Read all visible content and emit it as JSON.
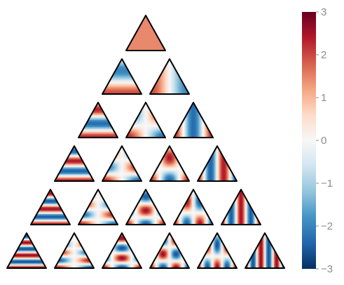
{
  "chart_data": {
    "type": "heatmap",
    "title": "",
    "xlabel": "",
    "ylabel": "",
    "colormap": "RdBu_r",
    "color_range": [
      -3,
      3
    ],
    "colorbar": {
      "ticks": [
        3,
        2,
        1,
        0,
        -1,
        -2,
        -3
      ],
      "tick_labels": [
        "3",
        "2",
        "1",
        "0",
        "−1",
        "−2",
        "−3"
      ]
    },
    "grid": false,
    "rows": 6,
    "panels_per_row": [
      1,
      2,
      3,
      4,
      5,
      6
    ],
    "panels": [
      {
        "row": 0,
        "col": 0,
        "fy": 0,
        "fx": 0,
        "fc": 0,
        "amp": 1.45
      },
      {
        "row": 1,
        "col": 0,
        "fy": 1,
        "fx": 0,
        "fc": 0,
        "amp": 2.0
      },
      {
        "row": 1,
        "col": 1,
        "fy": 0,
        "fx": 1,
        "fc": 0,
        "amp": 2.0
      },
      {
        "row": 2,
        "col": 0,
        "fy": 2,
        "fx": 0,
        "fc": 0,
        "amp": 2.3
      },
      {
        "row": 2,
        "col": 1,
        "fy": 1,
        "fx": 1,
        "fc": 0,
        "amp": 2.3
      },
      {
        "row": 2,
        "col": 2,
        "fy": 0,
        "fx": 2,
        "fc": 0,
        "amp": 2.3
      },
      {
        "row": 3,
        "col": 0,
        "fy": 3,
        "fx": 0,
        "fc": 0,
        "amp": 2.4
      },
      {
        "row": 3,
        "col": 1,
        "fy": 2,
        "fx": 1,
        "fc": 0,
        "amp": 2.4
      },
      {
        "row": 3,
        "col": 2,
        "fy": 1,
        "fx": 2,
        "fc": 0,
        "amp": 2.4
      },
      {
        "row": 3,
        "col": 3,
        "fy": 0,
        "fx": 3,
        "fc": 0,
        "amp": 2.4
      },
      {
        "row": 4,
        "col": 0,
        "fy": 4,
        "fx": 0,
        "fc": 0,
        "amp": 2.5
      },
      {
        "row": 4,
        "col": 1,
        "fy": 3,
        "fx": 1,
        "fc": 0,
        "amp": 2.5
      },
      {
        "row": 4,
        "col": 2,
        "fy": 2,
        "fx": 2,
        "fc": 0,
        "amp": 2.5
      },
      {
        "row": 4,
        "col": 3,
        "fy": 1,
        "fx": 3,
        "fc": 0,
        "amp": 2.5
      },
      {
        "row": 4,
        "col": 4,
        "fy": 0,
        "fx": 4,
        "fc": 0,
        "amp": 2.5
      },
      {
        "row": 5,
        "col": 0,
        "fy": 5,
        "fx": 0,
        "fc": 0,
        "amp": 2.6
      },
      {
        "row": 5,
        "col": 1,
        "fy": 4,
        "fx": 1,
        "fc": 0,
        "amp": 2.6
      },
      {
        "row": 5,
        "col": 2,
        "fy": 3,
        "fx": 2,
        "fc": 0,
        "amp": 2.6
      },
      {
        "row": 5,
        "col": 3,
        "fy": 2,
        "fx": 3,
        "fc": 0,
        "amp": 2.6
      },
      {
        "row": 5,
        "col": 4,
        "fy": 1,
        "fx": 4,
        "fc": 0,
        "amp": 2.6
      },
      {
        "row": 5,
        "col": 5,
        "fy": 0,
        "fx": 5,
        "fc": 0,
        "amp": 2.6
      }
    ]
  },
  "colors": {
    "outline": "#000000",
    "tick_text": "#8c8c8c",
    "colormap_stops": [
      "#053061",
      "#2166ac",
      "#4393c3",
      "#92c5de",
      "#d1e5f0",
      "#f7f7f7",
      "#fddbc7",
      "#f4a582",
      "#d6604d",
      "#b2182b",
      "#67001f"
    ]
  }
}
